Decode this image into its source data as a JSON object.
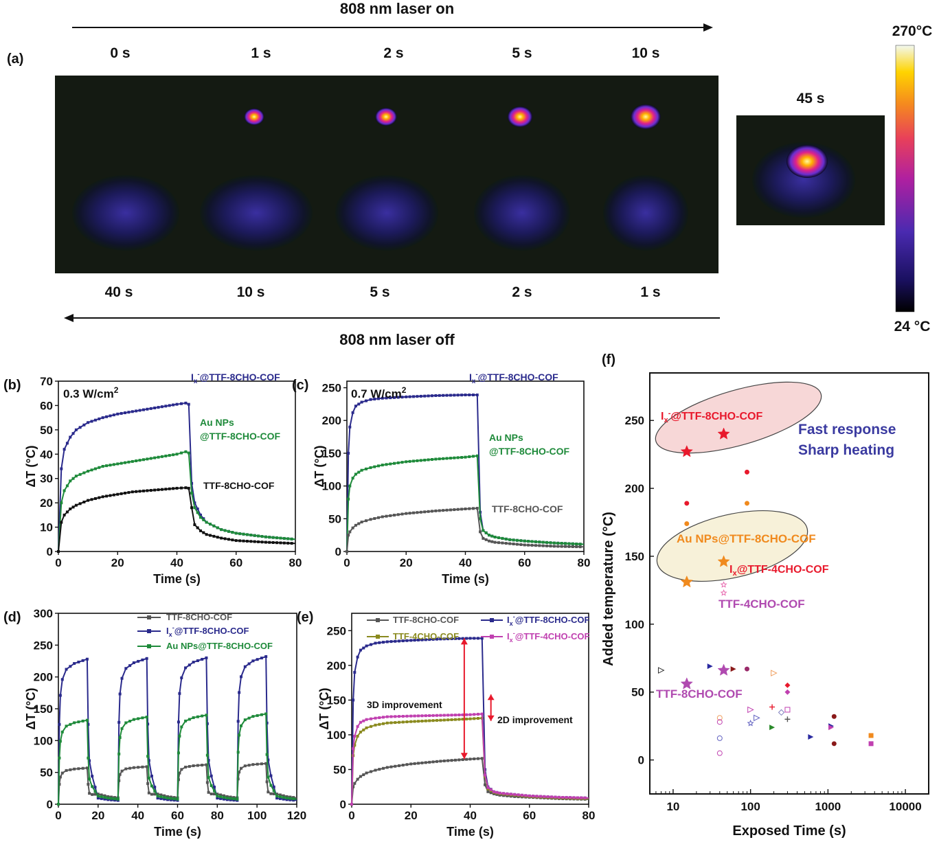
{
  "panel_a": {
    "panel_label": "(a)",
    "laser_on_label": "808 nm laser on",
    "laser_off_label": "808 nm laser off",
    "top_times": [
      "0 s",
      "1 s",
      "2 s",
      "5 s",
      "10 s"
    ],
    "bottom_times": [
      "40 s",
      "10 s",
      "5 s",
      "2 s",
      "1 s"
    ],
    "spot_label": "45 s",
    "colorbar_max": "270°C",
    "colorbar_min": "24 °C"
  },
  "chart_data": [
    {
      "id": "b",
      "panel_label": "(b)",
      "type": "line",
      "note": "0.3 W/cm",
      "note_sup": "2",
      "xlabel": "Time (s)",
      "ylabel": "ΔT (°C)",
      "xlim": [
        0,
        80
      ],
      "ylim": [
        0,
        70
      ],
      "xticks": [
        0,
        20,
        40,
        60,
        80
      ],
      "yticks": [
        0,
        10,
        20,
        30,
        40,
        50,
        60,
        70
      ],
      "series": [
        {
          "name": "Ix-@TTF-8CHO-COF",
          "color": "#2a2a8c",
          "x": [
            0,
            1,
            2,
            4,
            6,
            10,
            15,
            20,
            25,
            30,
            35,
            40,
            43,
            44,
            45,
            46,
            48,
            50,
            55,
            60,
            70,
            80
          ],
          "y": [
            0,
            34,
            42,
            47,
            50,
            53,
            55,
            56.5,
            57.5,
            58.5,
            59.5,
            60.5,
            61,
            60.5,
            28,
            20,
            15,
            12,
            9,
            7.5,
            6,
            5
          ]
        },
        {
          "name": "Au NPs @TTF-8CHO-COF",
          "color": "#1e8a3a",
          "x": [
            0,
            1,
            2,
            4,
            6,
            10,
            15,
            20,
            25,
            30,
            35,
            40,
            43,
            44,
            45,
            46,
            48,
            50,
            55,
            60,
            70,
            80
          ],
          "y": [
            0,
            20,
            25,
            29,
            31,
            33,
            35,
            36,
            37,
            38,
            39,
            40,
            41,
            40.5,
            24,
            18,
            14,
            12,
            9,
            7.5,
            6,
            5
          ]
        },
        {
          "name": "TTF-8CHO-COF",
          "color": "#111111",
          "x": [
            0,
            1,
            2,
            4,
            6,
            10,
            15,
            20,
            25,
            30,
            35,
            40,
            43,
            44,
            45,
            46,
            48,
            50,
            55,
            60,
            70,
            80
          ],
          "y": [
            0,
            12,
            15,
            17.5,
            19,
            21,
            22.5,
            23.5,
            24.5,
            25,
            25.5,
            26,
            26.2,
            26,
            18,
            11,
            8.5,
            7,
            5.5,
            4.5,
            3.8,
            3.3
          ]
        }
      ],
      "labels": [
        {
          "text": "I",
          "sub": "x",
          "sup": "-",
          "rest": "@TTF-8CHO-COF",
          "color": "#2a2a8c"
        },
        {
          "text": "Au NPs",
          "color": "#1e8a3a"
        },
        {
          "text": "@TTF-8CHO-COF",
          "color": "#1e8a3a"
        },
        {
          "text": "TTF-8CHO-COF",
          "color": "#111111"
        }
      ]
    },
    {
      "id": "c",
      "panel_label": "(c)",
      "type": "line",
      "note": "0.7 W/cm",
      "note_sup": "2",
      "xlabel": "Time (s)",
      "ylabel": "ΔT (°C)",
      "xlim": [
        0,
        80
      ],
      "ylim": [
        0,
        260
      ],
      "xticks": [
        0,
        20,
        40,
        60,
        80
      ],
      "yticks": [
        0,
        50,
        100,
        150,
        200,
        250
      ],
      "series": [
        {
          "name": "Ix-@TTF-8CHO-COF",
          "color": "#2a2a8c",
          "x": [
            0,
            0.5,
            1,
            2,
            3,
            5,
            8,
            12,
            20,
            30,
            40,
            44,
            45,
            46,
            48,
            50,
            55,
            60,
            70,
            80
          ],
          "y": [
            0,
            150,
            190,
            212,
            222,
            228,
            232,
            234,
            236,
            238,
            239,
            239,
            60,
            32,
            25,
            22,
            18,
            16,
            13,
            11
          ]
        },
        {
          "name": "Au NPs @TTF-8CHO-COF",
          "color": "#1e8a3a",
          "x": [
            0,
            0.5,
            1,
            2,
            3,
            5,
            8,
            12,
            20,
            30,
            40,
            44,
            45,
            46,
            48,
            50,
            55,
            60,
            70,
            80
          ],
          "y": [
            0,
            80,
            100,
            112,
            118,
            124,
            128,
            132,
            137,
            141,
            144,
            146,
            50,
            32,
            25,
            22,
            18,
            16,
            13,
            11
          ]
        },
        {
          "name": "TTF-8CHO-COF",
          "color": "#555555",
          "x": [
            0,
            0.5,
            1,
            2,
            3,
            5,
            8,
            12,
            20,
            30,
            40,
            44,
            45,
            46,
            48,
            50,
            55,
            60,
            70,
            80
          ],
          "y": [
            0,
            25,
            30,
            36,
            40,
            45,
            49,
            53,
            58,
            62,
            65,
            66,
            30,
            20,
            16,
            14,
            12,
            10,
            8,
            7
          ]
        }
      ],
      "labels": [
        {
          "text": "I",
          "sub": "x",
          "sup": "-",
          "rest": "@TTF-8CHO-COF",
          "color": "#2a2a8c"
        },
        {
          "text": "Au NPs",
          "color": "#1e8a3a"
        },
        {
          "text": "@TTF-8CHO-COF",
          "color": "#1e8a3a"
        },
        {
          "text": "TTF-8CHO-COF",
          "color": "#555555"
        }
      ]
    },
    {
      "id": "d",
      "panel_label": "(d)",
      "type": "line",
      "xlabel": "Time (s)",
      "ylabel": "ΔT (°C)",
      "xlim": [
        0,
        120
      ],
      "ylim": [
        0,
        300
      ],
      "xticks": [
        0,
        20,
        40,
        60,
        80,
        100,
        120
      ],
      "yticks": [
        0,
        50,
        100,
        150,
        200,
        250,
        300
      ],
      "legend_position": "top-right",
      "cycles": [
        0,
        30,
        60,
        90
      ],
      "series": [
        {
          "name": "TTF-8CHO-COF",
          "color": "#555555",
          "peaks": [
            57,
            59,
            62,
            64
          ],
          "floor": 10
        },
        {
          "name": "Ix-@TTF-8CHO-COF",
          "color": "#2a2a8c",
          "peaks": [
            228,
            229,
            230,
            232
          ],
          "floor": 6
        },
        {
          "name": "Au NPs@TTF-8CHO-COF",
          "color": "#1e8a3a",
          "peaks": [
            132,
            137,
            140,
            142
          ],
          "floor": 8
        }
      ],
      "legend": [
        {
          "text": "TTF-8CHO-COF",
          "color": "#555555"
        },
        {
          "text": "I",
          "sub": "x",
          "sup": "-",
          "rest": "@TTF-8CHO-COF",
          "color": "#2a2a8c"
        },
        {
          "text": "Au NPs@TTF-8CHO-COF",
          "color": "#1e8a3a"
        }
      ]
    },
    {
      "id": "e",
      "panel_label": "(e)",
      "type": "line",
      "xlabel": "Time (s)",
      "ylabel": "ΔT (°C)",
      "xlim": [
        0,
        80
      ],
      "ylim": [
        0,
        275
      ],
      "xticks": [
        0,
        20,
        40,
        60,
        80
      ],
      "yticks": [
        0,
        50,
        100,
        150,
        200,
        250
      ],
      "legend_position": "top",
      "series": [
        {
          "name": "TTF-8CHO-COF",
          "color": "#555555",
          "x": [
            0,
            0.5,
            1,
            2,
            3,
            5,
            8,
            12,
            20,
            30,
            40,
            44,
            45,
            46,
            48,
            50,
            55,
            60,
            70,
            80
          ],
          "y": [
            0,
            25,
            30,
            36,
            40,
            45,
            49,
            53,
            58,
            62,
            65,
            66,
            28,
            18,
            15,
            13,
            11,
            10,
            8,
            7
          ]
        },
        {
          "name": "Ix-@TTF-8CHO-COF",
          "color": "#2a2a8c",
          "x": [
            0,
            0.5,
            1,
            2,
            3,
            5,
            8,
            12,
            20,
            30,
            40,
            44,
            45,
            46,
            48,
            50,
            55,
            60,
            70,
            80
          ],
          "y": [
            0,
            150,
            190,
            212,
            222,
            228,
            232,
            234,
            236,
            238,
            239,
            239,
            50,
            25,
            18,
            16,
            14,
            12,
            10,
            9
          ]
        },
        {
          "name": "TTF-4CHO-COF",
          "color": "#8a8a1e",
          "x": [
            0,
            0.5,
            1,
            2,
            3,
            5,
            8,
            12,
            20,
            30,
            40,
            44,
            45,
            46,
            48,
            50,
            55,
            60,
            70,
            80
          ],
          "y": [
            0,
            70,
            85,
            98,
            104,
            110,
            114,
            117,
            119,
            121,
            123,
            124,
            40,
            22,
            17,
            15,
            13,
            11,
            9,
            8
          ]
        },
        {
          "name": "Ix-@TTF-4CHO-COF",
          "color": "#c040b0",
          "x": [
            0,
            0.5,
            1,
            2,
            3,
            5,
            8,
            12,
            20,
            30,
            40,
            44,
            45,
            46,
            48,
            50,
            55,
            60,
            70,
            80
          ],
          "y": [
            0,
            80,
            98,
            112,
            118,
            122,
            124,
            126,
            127,
            128,
            129,
            130,
            42,
            24,
            18,
            16,
            14,
            12,
            10,
            9
          ]
        }
      ],
      "legend": [
        {
          "text": "TTF-8CHO-COF",
          "color": "#555555"
        },
        {
          "text": "I",
          "sub": "x",
          "sup": "-",
          "rest": "@TTF-8CHO-COF",
          "color": "#2a2a8c"
        },
        {
          "text": "TTF-4CHO-COF",
          "color": "#8a8a1e"
        },
        {
          "text": "I",
          "sub": "x",
          "sup": "-",
          "rest": "@TTF-4CHO-COF",
          "color": "#c040b0"
        }
      ],
      "annotations": [
        "3D improvement",
        "2D improvement"
      ],
      "arrow_3d": {
        "x": 38,
        "y_from": 65,
        "y_to": 239
      },
      "arrow_2d": {
        "x": 47,
        "y_from": 120,
        "y_to": 158
      }
    },
    {
      "id": "f",
      "panel_label": "(f)",
      "type": "scatter",
      "xlabel": "Exposed Time (s)",
      "ylabel": "Added temperature (°C)",
      "xscale": "log",
      "xlim": [
        5,
        20000
      ],
      "ylim": [
        -25,
        285
      ],
      "xticks": [
        10,
        100,
        1000,
        10000
      ],
      "xtick_labels": [
        "10",
        "100",
        "1000",
        "10000"
      ],
      "yticks": [
        0,
        50,
        100,
        150,
        200,
        250
      ],
      "highlights": [
        {
          "x": 15,
          "y": 227,
          "color": "#e8192c"
        },
        {
          "x": 45,
          "y": 240,
          "color": "#e8192c"
        },
        {
          "x": 15,
          "y": 131,
          "color": "#f08a1e"
        },
        {
          "x": 45,
          "y": 146,
          "color": "#f08a1e"
        },
        {
          "x": 15,
          "y": 56,
          "color": "#b04ab0"
        },
        {
          "x": 45,
          "y": 66,
          "color": "#b04ab0"
        }
      ],
      "points": [
        {
          "x": 15,
          "y": 189,
          "color": "#e8192c",
          "shape": "circle"
        },
        {
          "x": 90,
          "y": 212,
          "color": "#e8192c",
          "shape": "circle"
        },
        {
          "x": 15,
          "y": 174,
          "color": "#f08a1e",
          "shape": "circle"
        },
        {
          "x": 90,
          "y": 189,
          "color": "#f08a1e",
          "shape": "circle"
        },
        {
          "x": 45,
          "y": 129,
          "color": "#e86bb0",
          "shape": "open-star"
        },
        {
          "x": 45,
          "y": 123,
          "color": "#e86bb0",
          "shape": "open-star"
        },
        {
          "x": 7,
          "y": 66,
          "color": "#333333",
          "shape": "open-triangle"
        },
        {
          "x": 30,
          "y": 69,
          "color": "#2a2aa0",
          "shape": "triangle"
        },
        {
          "x": 60,
          "y": 67,
          "color": "#8a1a1a",
          "shape": "triangle"
        },
        {
          "x": 90,
          "y": 67,
          "color": "#9a2a6a",
          "shape": "circle"
        },
        {
          "x": 200,
          "y": 64,
          "color": "#f0a060",
          "shape": "open-triangle"
        },
        {
          "x": 300,
          "y": 55,
          "color": "#e8192c",
          "shape": "diamond"
        },
        {
          "x": 300,
          "y": 50,
          "color": "#c040b0",
          "shape": "diamond"
        },
        {
          "x": 40,
          "y": 31,
          "color": "#f0a060",
          "shape": "open-circle"
        },
        {
          "x": 40,
          "y": 28,
          "color": "#c040b0",
          "shape": "open-circle"
        },
        {
          "x": 40,
          "y": 16,
          "color": "#6060c0",
          "shape": "open-circle"
        },
        {
          "x": 40,
          "y": 5,
          "color": "#c040b0",
          "shape": "open-circle"
        },
        {
          "x": 100,
          "y": 37,
          "color": "#c040b0",
          "shape": "open-triangle"
        },
        {
          "x": 100,
          "y": 27,
          "color": "#6060c0",
          "shape": "open-star"
        },
        {
          "x": 120,
          "y": 31,
          "color": "#6060c0",
          "shape": "open-triangle"
        },
        {
          "x": 190,
          "y": 39,
          "color": "#e8192c",
          "shape": "open-cross"
        },
        {
          "x": 190,
          "y": 24,
          "color": "#2a8a2a",
          "shape": "triangle"
        },
        {
          "x": 250,
          "y": 35,
          "color": "#8080c0",
          "shape": "open-diamond"
        },
        {
          "x": 300,
          "y": 37,
          "color": "#c040b0",
          "shape": "open-square"
        },
        {
          "x": 300,
          "y": 30,
          "color": "#555555",
          "shape": "open-cross"
        },
        {
          "x": 600,
          "y": 17,
          "color": "#2a2aa0",
          "shape": "triangle"
        },
        {
          "x": 1100,
          "y": 25,
          "color": "#2a2aa0",
          "shape": "triangle"
        },
        {
          "x": 1100,
          "y": 24,
          "color": "#c040b0",
          "shape": "triangle"
        },
        {
          "x": 1200,
          "y": 32,
          "color": "#8a1a1a",
          "shape": "circle"
        },
        {
          "x": 1200,
          "y": 12,
          "color": "#8a1a1a",
          "shape": "circle"
        },
        {
          "x": 3600,
          "y": 18,
          "color": "#f08a1e",
          "shape": "square"
        },
        {
          "x": 3600,
          "y": 12,
          "color": "#c040b0",
          "shape": "square"
        }
      ],
      "labels": [
        {
          "text": "I",
          "sup": "-",
          "sub": "x",
          "rest": "@TTF-8CHO-COF",
          "color": "#e8192c"
        },
        {
          "text": "Fast response",
          "color": "#3a3aa0"
        },
        {
          "text": "Sharp heating",
          "color": "#3a3aa0"
        },
        {
          "text": "Au NPs@TTF-8CHO-COF",
          "color": "#f08a1e"
        },
        {
          "text": "I",
          "sub": "x",
          "rest": "@TTF-4CHO-COF",
          "color": "#e8192c"
        },
        {
          "text": "TTF-4CHO-COF",
          "color": "#b04ab0"
        },
        {
          "text": "TTF-8CHO-COF",
          "color": "#b04ab0"
        }
      ]
    }
  ]
}
